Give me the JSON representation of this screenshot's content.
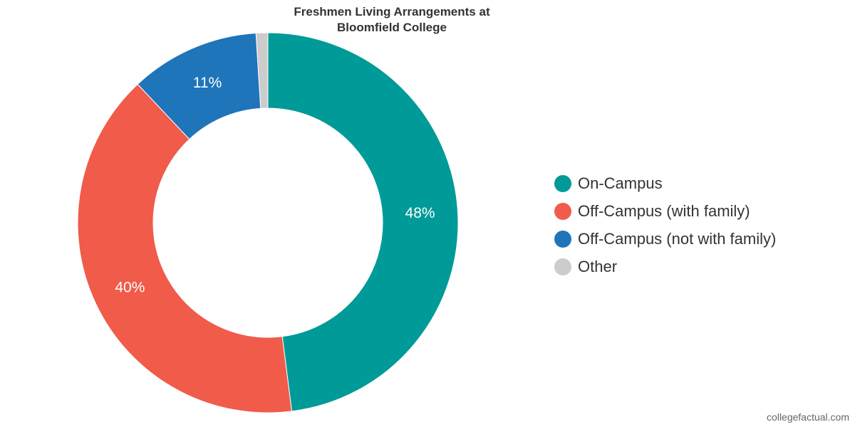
{
  "chart_data": {
    "type": "pie",
    "title": "Freshmen Living Arrangements at Bloomfield College",
    "title_lines": [
      "Freshmen Living Arrangements at",
      "Bloomfield College"
    ],
    "donut": true,
    "slices": [
      {
        "name": "On-Campus",
        "value": 48,
        "label": "48%",
        "color": "#009a98"
      },
      {
        "name": "Off-Campus (with family)",
        "value": 40,
        "label": "40%",
        "color": "#f05b4a"
      },
      {
        "name": "Off-Campus (not with family)",
        "value": 11,
        "label": "11%",
        "color": "#1f75ba"
      },
      {
        "name": "Other",
        "value": 1,
        "label": "",
        "color": "#cccccc"
      }
    ],
    "legend_position": "right"
  },
  "footer": {
    "credit": "collegefactual.com"
  }
}
